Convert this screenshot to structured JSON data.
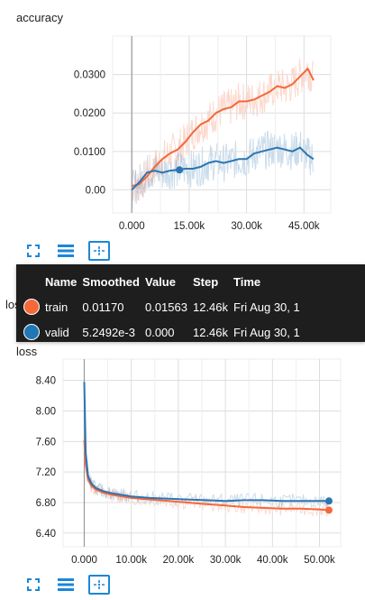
{
  "cards": [
    {
      "title": "accuracy"
    },
    {
      "title": "loss"
    }
  ],
  "chart_data": [
    {
      "type": "line",
      "title": "accuracy",
      "xlabel": "",
      "ylabel": "",
      "xlim": [
        -5000,
        52000
      ],
      "ylim": [
        -0.006,
        0.04
      ],
      "y_ticks": [
        "0.00",
        "0.0100",
        "0.0200",
        "0.0300"
      ],
      "y_tick_values": [
        0.0,
        0.01,
        0.02,
        0.03
      ],
      "x_ticks": [
        "0.000",
        "15.00k",
        "30.00k",
        "45.00k"
      ],
      "x_tick_values": [
        0,
        15000,
        30000,
        45000
      ],
      "grid": true,
      "series": [
        {
          "name": "train",
          "color": "#f4683a",
          "x": [
            0,
            2000,
            4000,
            6000,
            8000,
            10000,
            12000,
            14000,
            16000,
            18000,
            20000,
            22000,
            24000,
            26000,
            28000,
            30000,
            32000,
            34000,
            36000,
            38000,
            40000,
            42000,
            44000,
            46000,
            47500
          ],
          "y": [
            0.001,
            0.0015,
            0.0035,
            0.006,
            0.008,
            0.0095,
            0.0105,
            0.0125,
            0.015,
            0.017,
            0.018,
            0.02,
            0.021,
            0.0215,
            0.023,
            0.023,
            0.0235,
            0.0245,
            0.0255,
            0.027,
            0.0265,
            0.0275,
            0.0295,
            0.0315,
            0.0285
          ]
        },
        {
          "name": "valid",
          "color": "#2c75b1",
          "x": [
            0,
            2000,
            4000,
            6000,
            8000,
            10000,
            12000,
            14000,
            16000,
            18000,
            20000,
            22000,
            24000,
            26000,
            28000,
            30000,
            32000,
            34000,
            36000,
            38000,
            40000,
            42000,
            44000,
            46000,
            47500
          ],
          "y": [
            0.0,
            0.002,
            0.0045,
            0.005,
            0.0045,
            0.005,
            0.0052,
            0.0055,
            0.0055,
            0.006,
            0.007,
            0.0075,
            0.007,
            0.0075,
            0.008,
            0.008,
            0.0095,
            0.01,
            0.0105,
            0.011,
            0.0105,
            0.01,
            0.011,
            0.009,
            0.008
          ]
        }
      ],
      "highlight_x": 12460,
      "highlight_y": 0.0052
    },
    {
      "type": "line",
      "title": "loss",
      "xlabel": "",
      "ylabel": "",
      "xlim": [
        -4500,
        54500
      ],
      "ylim": [
        6.22,
        8.68
      ],
      "y_ticks": [
        "6.40",
        "6.80",
        "7.20",
        "7.60",
        "8.00",
        "8.40"
      ],
      "y_tick_values": [
        6.4,
        6.8,
        7.2,
        7.6,
        8.0,
        8.4
      ],
      "x_ticks": [
        "0.000",
        "10.00k",
        "20.00k",
        "30.00k",
        "40.00k",
        "50.00k"
      ],
      "x_tick_values": [
        0,
        10000,
        20000,
        30000,
        40000,
        50000
      ],
      "grid": true,
      "series": [
        {
          "name": "train",
          "color": "#f4683a",
          "x": [
            0,
            300,
            800,
            1500,
            2500,
            4000,
            6000,
            8000,
            10000,
            14000,
            18000,
            22000,
            26000,
            30000,
            34000,
            38000,
            42000,
            46000,
            50000,
            52000
          ],
          "y": [
            7.62,
            7.3,
            7.1,
            7.02,
            6.97,
            6.93,
            6.9,
            6.88,
            6.86,
            6.84,
            6.82,
            6.8,
            6.78,
            6.76,
            6.74,
            6.73,
            6.72,
            6.72,
            6.71,
            6.7
          ]
        },
        {
          "name": "valid",
          "color": "#2c75b1",
          "x": [
            0,
            300,
            800,
            1500,
            2500,
            4000,
            6000,
            8000,
            10000,
            14000,
            18000,
            22000,
            26000,
            30000,
            34000,
            38000,
            42000,
            46000,
            50000,
            52000
          ],
          "y": [
            8.38,
            7.45,
            7.15,
            7.05,
            6.99,
            6.95,
            6.92,
            6.9,
            6.88,
            6.86,
            6.85,
            6.84,
            6.83,
            6.82,
            6.83,
            6.83,
            6.82,
            6.82,
            6.82,
            6.82
          ]
        }
      ]
    }
  ],
  "tooltip": {
    "headers": [
      "Name",
      "Smoothed",
      "Value",
      "Step",
      "Time"
    ],
    "rows": [
      {
        "name": "train",
        "color": "#f4683a",
        "smoothed": "0.01170",
        "value": "0.01563",
        "step": "12.46k",
        "time": "Fri Aug 30, 1"
      },
      {
        "name": "valid",
        "color": "#1f77b4",
        "smoothed": "5.2492e-3",
        "value": "0.000",
        "step": "12.46k",
        "time": "Fri Aug 30, 1"
      }
    ]
  },
  "peek_text": "los",
  "icons": [
    "fullscreen-icon",
    "list-icon",
    "fit-domain-icon"
  ]
}
